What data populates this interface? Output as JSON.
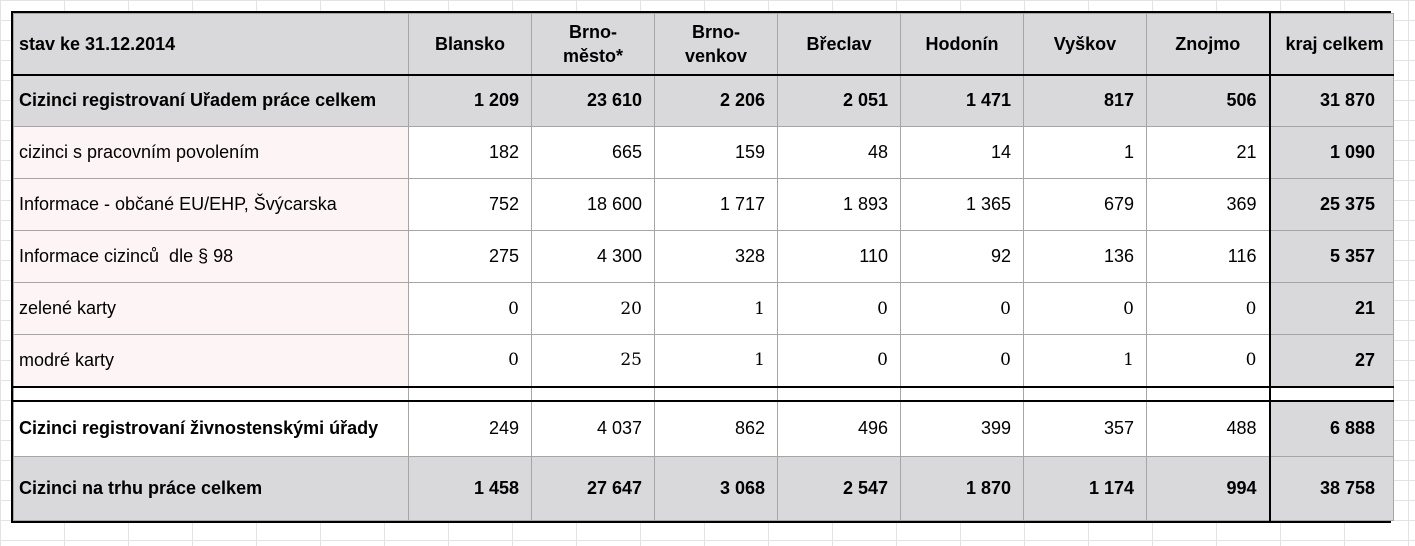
{
  "chart_data": {
    "type": "table",
    "header": {
      "label": "stav ke 31.12.2014",
      "columns": [
        {
          "line1": "Blansko",
          "line2": ""
        },
        {
          "line1": "Brno-",
          "line2": "město*"
        },
        {
          "line1": "Brno-",
          "line2": "venkov"
        },
        {
          "line1": "Břeclav",
          "line2": ""
        },
        {
          "line1": "Hodonín",
          "line2": ""
        },
        {
          "line1": "Vyškov",
          "line2": ""
        },
        {
          "line1": "Znojmo",
          "line2": ""
        },
        {
          "line1": "kraj celkem",
          "line2": ""
        }
      ]
    },
    "rows": [
      {
        "label": "Cizinci registrovaní Uřadem práce celkem",
        "values": [
          "1 209",
          "23 610",
          "2 206",
          "2 051",
          "1 471",
          "817",
          "506"
        ],
        "total": "31 870"
      },
      {
        "label": "cizinci s pracovním povolením",
        "values": [
          "182",
          "665",
          "159",
          "48",
          "14",
          "1",
          "21"
        ],
        "total": "1 090"
      },
      {
        "label": "Informace - občané EU/EHP, Švýcarska",
        "values": [
          "752",
          "18 600",
          "1 717",
          "1 893",
          "1 365",
          "679",
          "369"
        ],
        "total": "25 375"
      },
      {
        "label": "Informace cizinců  dle § 98",
        "values": [
          "275",
          "4 300",
          "328",
          "110",
          "92",
          "136",
          "116"
        ],
        "total": "5 357"
      },
      {
        "label": "zelené karty",
        "values": [
          "0",
          "20",
          "1",
          "0",
          "0",
          "0",
          "0"
        ],
        "total": "21"
      },
      {
        "label": "modré karty",
        "values": [
          "0",
          "25",
          "1",
          "0",
          "0",
          "1",
          "0"
        ],
        "total": "27"
      },
      {
        "label": "Cizinci registrovaní živnostenskými úřady",
        "values": [
          "249",
          "4 037",
          "862",
          "496",
          "399",
          "357",
          "488"
        ],
        "total": "6 888"
      },
      {
        "label": "Cizinci na trhu práce celkem",
        "values": [
          "1 458",
          "27 647",
          "3 068",
          "2 547",
          "1 870",
          "1 174",
          "994"
        ],
        "total": "38 758"
      }
    ]
  }
}
